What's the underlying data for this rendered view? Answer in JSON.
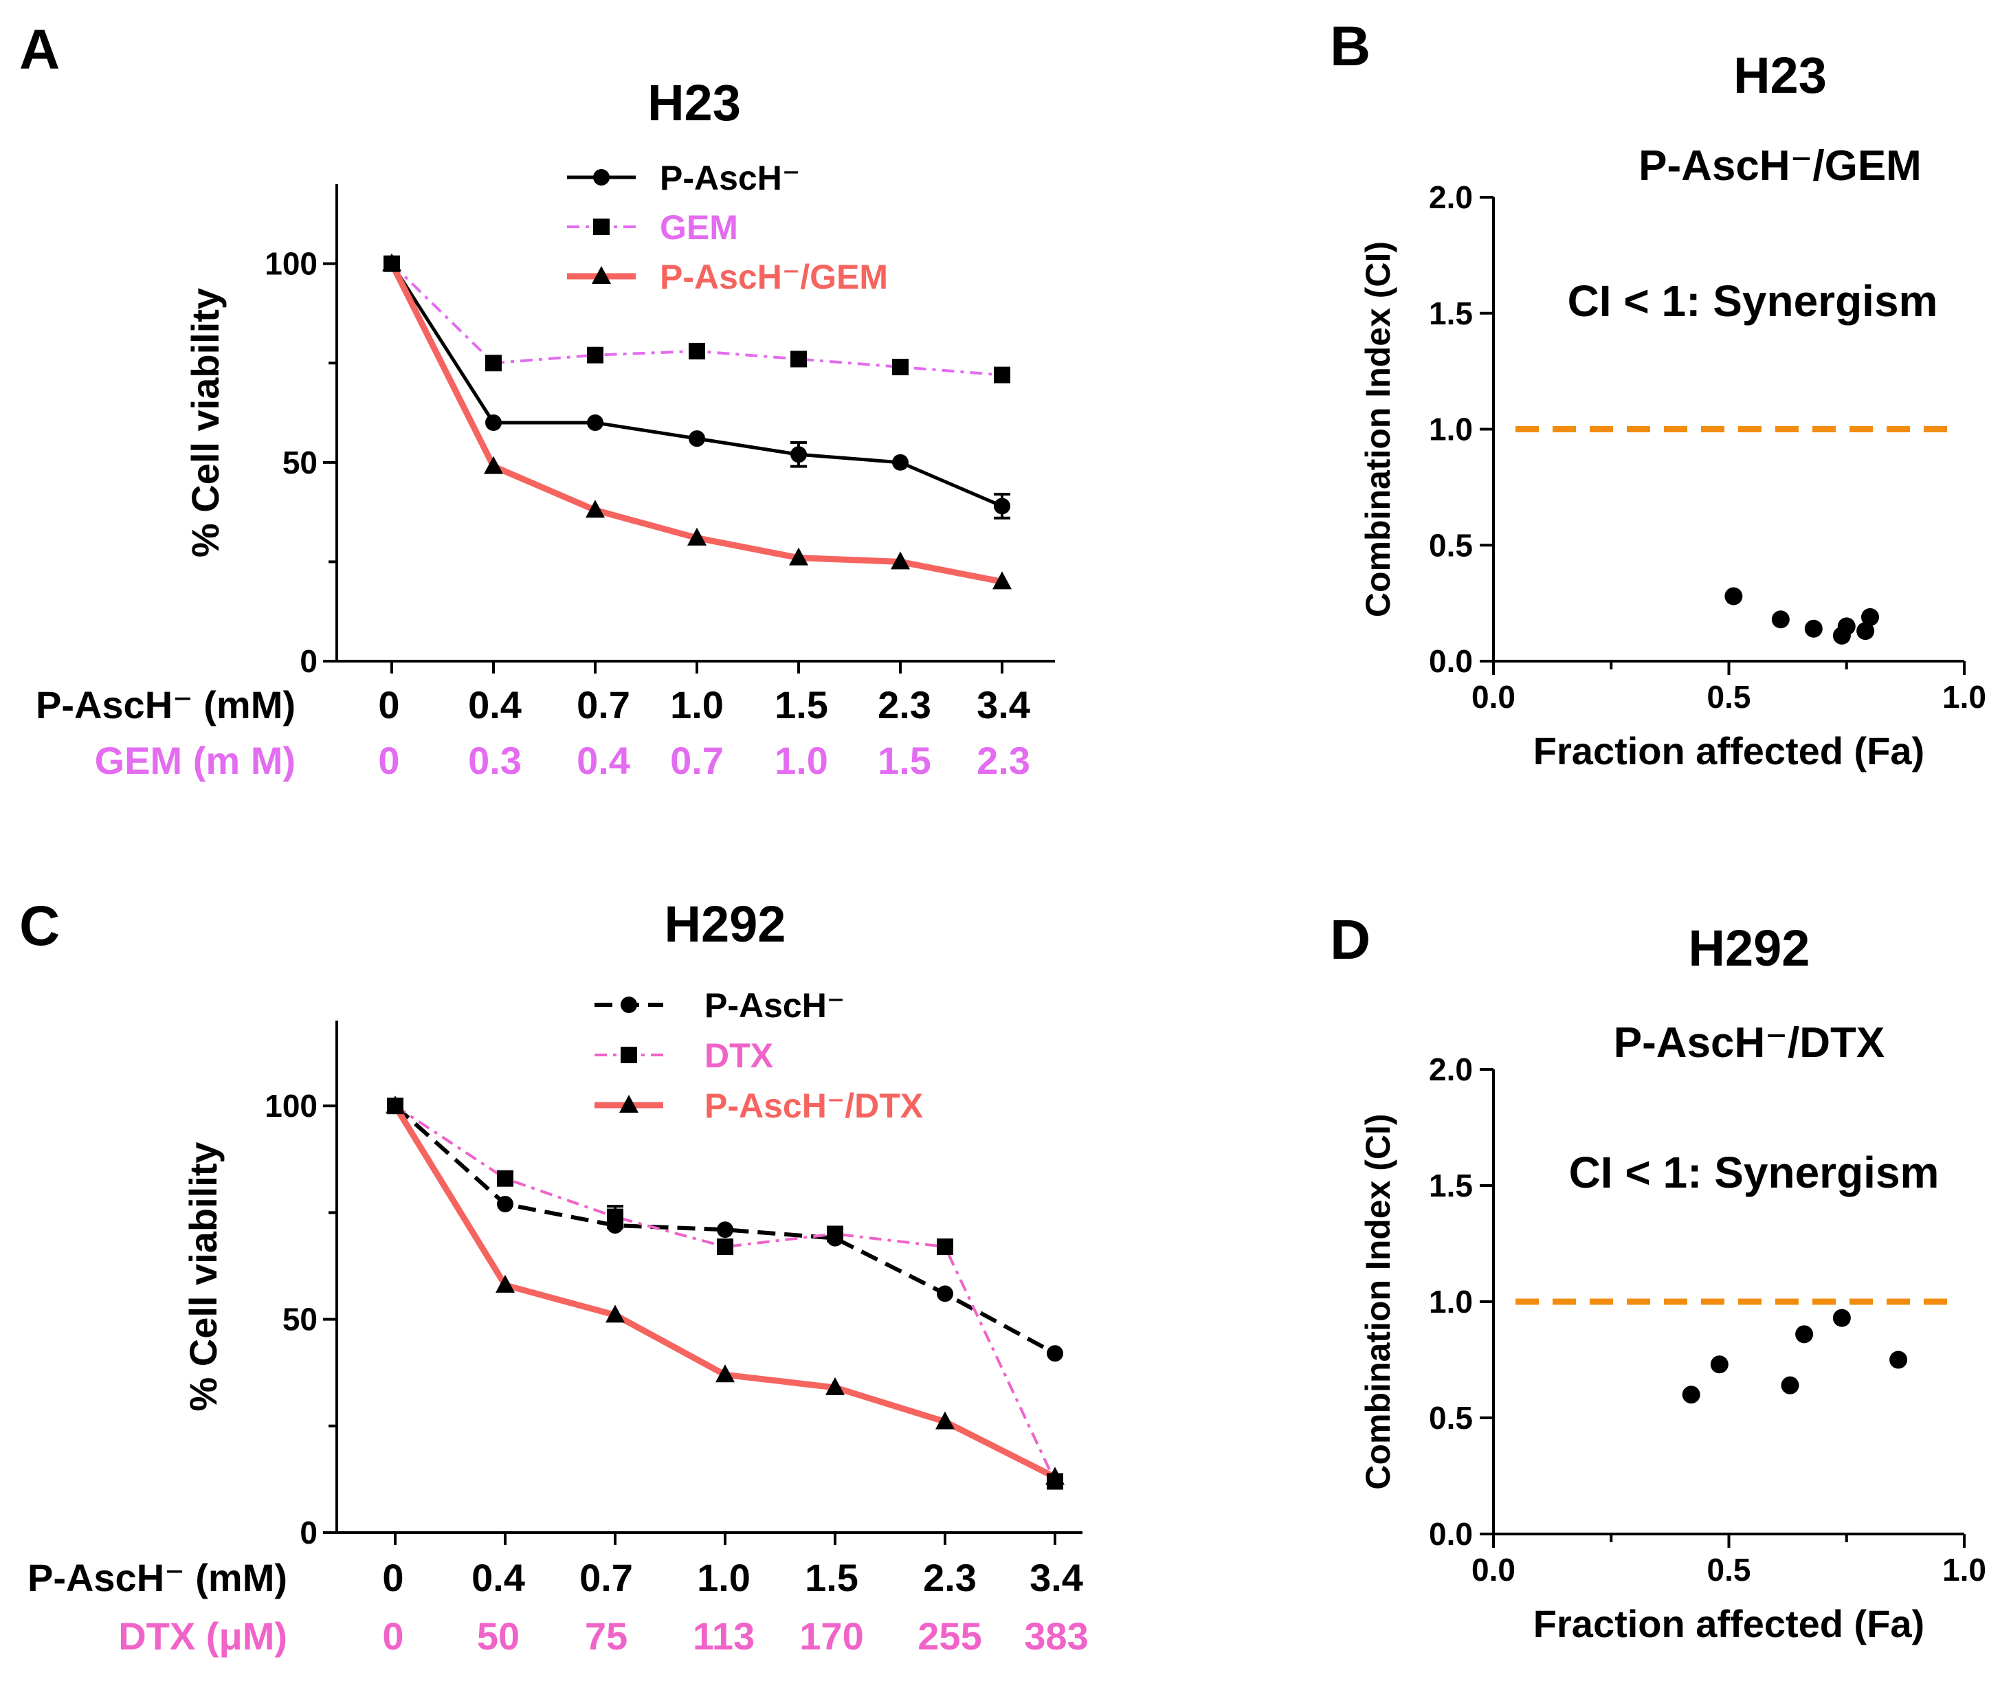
{
  "colors": {
    "black": "#000000",
    "magenta": "#E36CF0",
    "pink": "#F063C8",
    "red": "#F5645F",
    "orange": "#F28C0F"
  },
  "chart_data": [
    {
      "panel": "A",
      "type": "line",
      "title": "H23",
      "ylabel": "% Cell viability",
      "ylim": [
        0,
        120
      ],
      "yticks": [
        0,
        50,
        100
      ],
      "categories": [
        "0",
        "0.4",
        "0.7",
        "1.0",
        "1.5",
        "2.3",
        "3.4"
      ],
      "dose_rows": [
        {
          "label": "P-AscH⁻ (mM)",
          "color": "#000000",
          "values": [
            "0",
            "0.4",
            "0.7",
            "1.0",
            "1.5",
            "2.3",
            "3.4"
          ]
        },
        {
          "label": "GEM (m M)",
          "color": "#E36CF0",
          "values": [
            "0",
            "0.3",
            "0.4",
            "0.7",
            "1.0",
            "1.5",
            "2.3"
          ]
        }
      ],
      "legend_position": "top-center",
      "series": [
        {
          "name": "P-AscH⁻",
          "color": "#000000",
          "marker": "circle",
          "dash": "solid",
          "values": [
            100,
            60,
            60,
            56,
            52,
            50,
            39
          ],
          "errors": [
            0,
            0,
            0,
            0,
            3,
            0,
            3
          ]
        },
        {
          "name": "GEM",
          "color": "#E36CF0",
          "marker": "square",
          "dash": "dashdot",
          "values": [
            100,
            75,
            77,
            78,
            76,
            74,
            72
          ],
          "errors": [
            0,
            0,
            0,
            0,
            0,
            0,
            0
          ]
        },
        {
          "name": "P-AscH⁻/GEM",
          "color": "#F5645F",
          "marker": "triangle",
          "dash": "solid-thick",
          "values": [
            100,
            49,
            38,
            31,
            26,
            25,
            20
          ],
          "errors": [
            0,
            0,
            0,
            0,
            0,
            0,
            0
          ]
        }
      ]
    },
    {
      "panel": "B",
      "type": "scatter",
      "title": "H23",
      "subtitle": "P-AscH⁻/GEM",
      "annotation": "CI < 1: Synergism",
      "xlabel": "Fraction affected (Fa)",
      "ylabel": "Combination Index (CI)",
      "xlim": [
        0,
        1
      ],
      "ylim": [
        0,
        2
      ],
      "xticks": [
        "0.0",
        "0.5",
        "1.0"
      ],
      "yticks": [
        "0.0",
        "0.5",
        "1.0",
        "1.5",
        "2.0"
      ],
      "reference_line": {
        "y": 1.0,
        "color": "#F28C0F"
      },
      "points": [
        {
          "x": 0.51,
          "y": 0.28
        },
        {
          "x": 0.61,
          "y": 0.18
        },
        {
          "x": 0.68,
          "y": 0.14
        },
        {
          "x": 0.74,
          "y": 0.11
        },
        {
          "x": 0.75,
          "y": 0.15
        },
        {
          "x": 0.79,
          "y": 0.13
        },
        {
          "x": 0.8,
          "y": 0.19
        }
      ]
    },
    {
      "panel": "C",
      "type": "line",
      "title": "H292",
      "ylabel": "% Cell viability",
      "ylim": [
        0,
        120
      ],
      "yticks": [
        0,
        50,
        100
      ],
      "categories": [
        "0",
        "0.4",
        "0.7",
        "1.0",
        "1.5",
        "2.3",
        "3.4"
      ],
      "dose_rows": [
        {
          "label": "P-AscH⁻ (mM)",
          "color": "#000000",
          "values": [
            "0",
            "0.4",
            "0.7",
            "1.0",
            "1.5",
            "2.3",
            "3.4"
          ]
        },
        {
          "label": "DTX (μM)",
          "color": "#F063C8",
          "values": [
            "0",
            "50",
            "75",
            "113",
            "170",
            "255",
            "383"
          ]
        }
      ],
      "legend_position": "top-center",
      "series": [
        {
          "name": "P-AscH⁻",
          "color": "#000000",
          "marker": "circle",
          "dash": "dashed",
          "values": [
            100,
            77,
            72,
            71,
            69,
            56,
            42
          ],
          "errors": [
            0,
            0,
            0,
            0,
            0,
            0,
            0
          ]
        },
        {
          "name": "DTX",
          "color": "#F063C8",
          "marker": "square",
          "dash": "dashdot",
          "values": [
            100,
            83,
            74,
            67,
            70,
            67,
            12
          ],
          "errors": [
            0,
            0,
            2.5,
            0,
            0,
            0,
            0
          ]
        },
        {
          "name": "P-AscH⁻/DTX",
          "color": "#F5645F",
          "marker": "triangle",
          "dash": "solid-thick",
          "values": [
            100,
            58,
            51,
            37,
            34,
            26,
            13
          ],
          "errors": [
            0,
            0,
            0,
            0,
            0,
            0,
            0
          ]
        }
      ]
    },
    {
      "panel": "D",
      "type": "scatter",
      "title": "H292",
      "subtitle": "P-AscH⁻/DTX",
      "annotation": "CI < 1: Synergism",
      "xlabel": "Fraction affected (Fa)",
      "ylabel": "Combination Index (CI)",
      "xlim": [
        0,
        1
      ],
      "ylim": [
        0,
        2
      ],
      "xticks": [
        "0.0",
        "0.5",
        "1.0"
      ],
      "yticks": [
        "0.0",
        "0.5",
        "1.0",
        "1.5",
        "2.0"
      ],
      "reference_line": {
        "y": 1.0,
        "color": "#F28C0F"
      },
      "points": [
        {
          "x": 0.42,
          "y": 0.6
        },
        {
          "x": 0.48,
          "y": 0.73
        },
        {
          "x": 0.63,
          "y": 0.64
        },
        {
          "x": 0.66,
          "y": 0.86
        },
        {
          "x": 0.74,
          "y": 0.93
        },
        {
          "x": 0.86,
          "y": 0.75
        }
      ]
    }
  ]
}
